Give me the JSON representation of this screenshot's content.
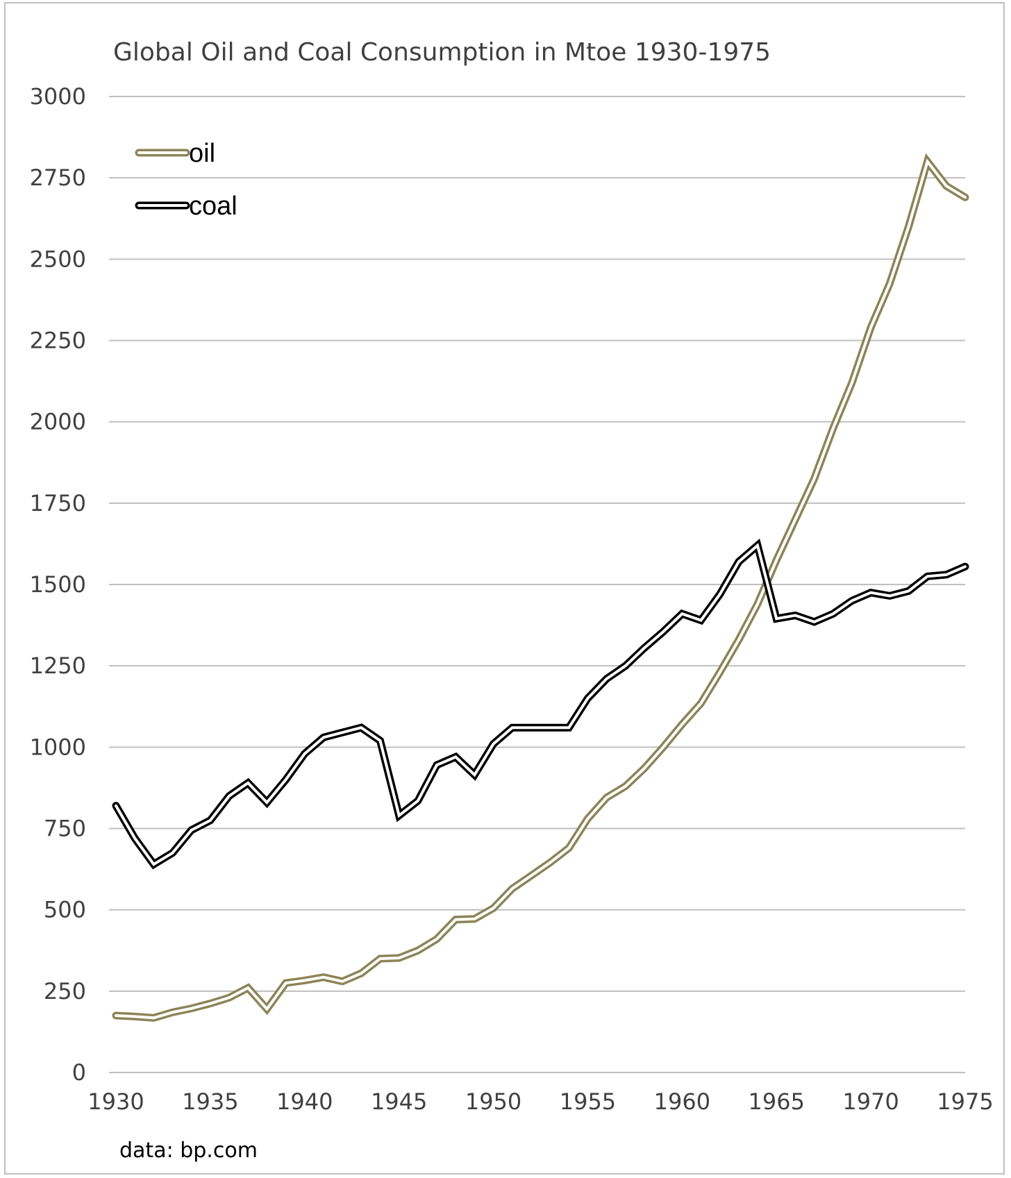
{
  "chart_data": {
    "type": "line",
    "title": "Global Oil and Coal Consumption in Mtoe 1930-1975",
    "source": "data: bp.com",
    "xlabel": "",
    "ylabel": "",
    "xlim": [
      1930,
      1975
    ],
    "ylim": [
      0,
      3000
    ],
    "x_ticks": [
      "1930",
      "1935",
      "1940",
      "1945",
      "1950",
      "1955",
      "1960",
      "1965",
      "1970",
      "1975"
    ],
    "y_ticks": [
      "0",
      "250",
      "500",
      "750",
      "1000",
      "1250",
      "1500",
      "1750",
      "2000",
      "2250",
      "2500",
      "2750",
      "3000"
    ],
    "grid": true,
    "legend_position": "top-left",
    "x": [
      1930,
      1931,
      1932,
      1933,
      1934,
      1935,
      1936,
      1937,
      1938,
      1939,
      1940,
      1941,
      1942,
      1943,
      1944,
      1945,
      1946,
      1947,
      1948,
      1949,
      1950,
      1951,
      1952,
      1953,
      1954,
      1955,
      1956,
      1957,
      1958,
      1959,
      1960,
      1961,
      1962,
      1963,
      1964,
      1965,
      1966,
      1967,
      1968,
      1969,
      1970,
      1971,
      1972,
      1973,
      1974,
      1975
    ],
    "series": [
      {
        "name": "oil",
        "color": "#8c8458",
        "values": [
          175,
          172,
          168,
          185,
          197,
          212,
          230,
          260,
          195,
          275,
          283,
          293,
          280,
          305,
          350,
          352,
          375,
          410,
          470,
          472,
          505,
          565,
          605,
          645,
          690,
          780,
          845,
          880,
          935,
          1000,
          1070,
          1135,
          1230,
          1330,
          1440,
          1575,
          1700,
          1825,
          1980,
          2120,
          2290,
          2425,
          2600,
          2800,
          2725,
          2690
        ]
      },
      {
        "name": "coal",
        "color": "#000000",
        "values": [
          820,
          720,
          640,
          675,
          745,
          775,
          850,
          890,
          830,
          900,
          980,
          1030,
          1045,
          1060,
          1020,
          790,
          835,
          945,
          970,
          915,
          1010,
          1060,
          1060,
          1060,
          1060,
          1150,
          1210,
          1250,
          1305,
          1355,
          1410,
          1390,
          1470,
          1570,
          1620,
          1395,
          1405,
          1385,
          1410,
          1450,
          1475,
          1465,
          1480,
          1525,
          1530,
          1555
        ]
      }
    ]
  }
}
